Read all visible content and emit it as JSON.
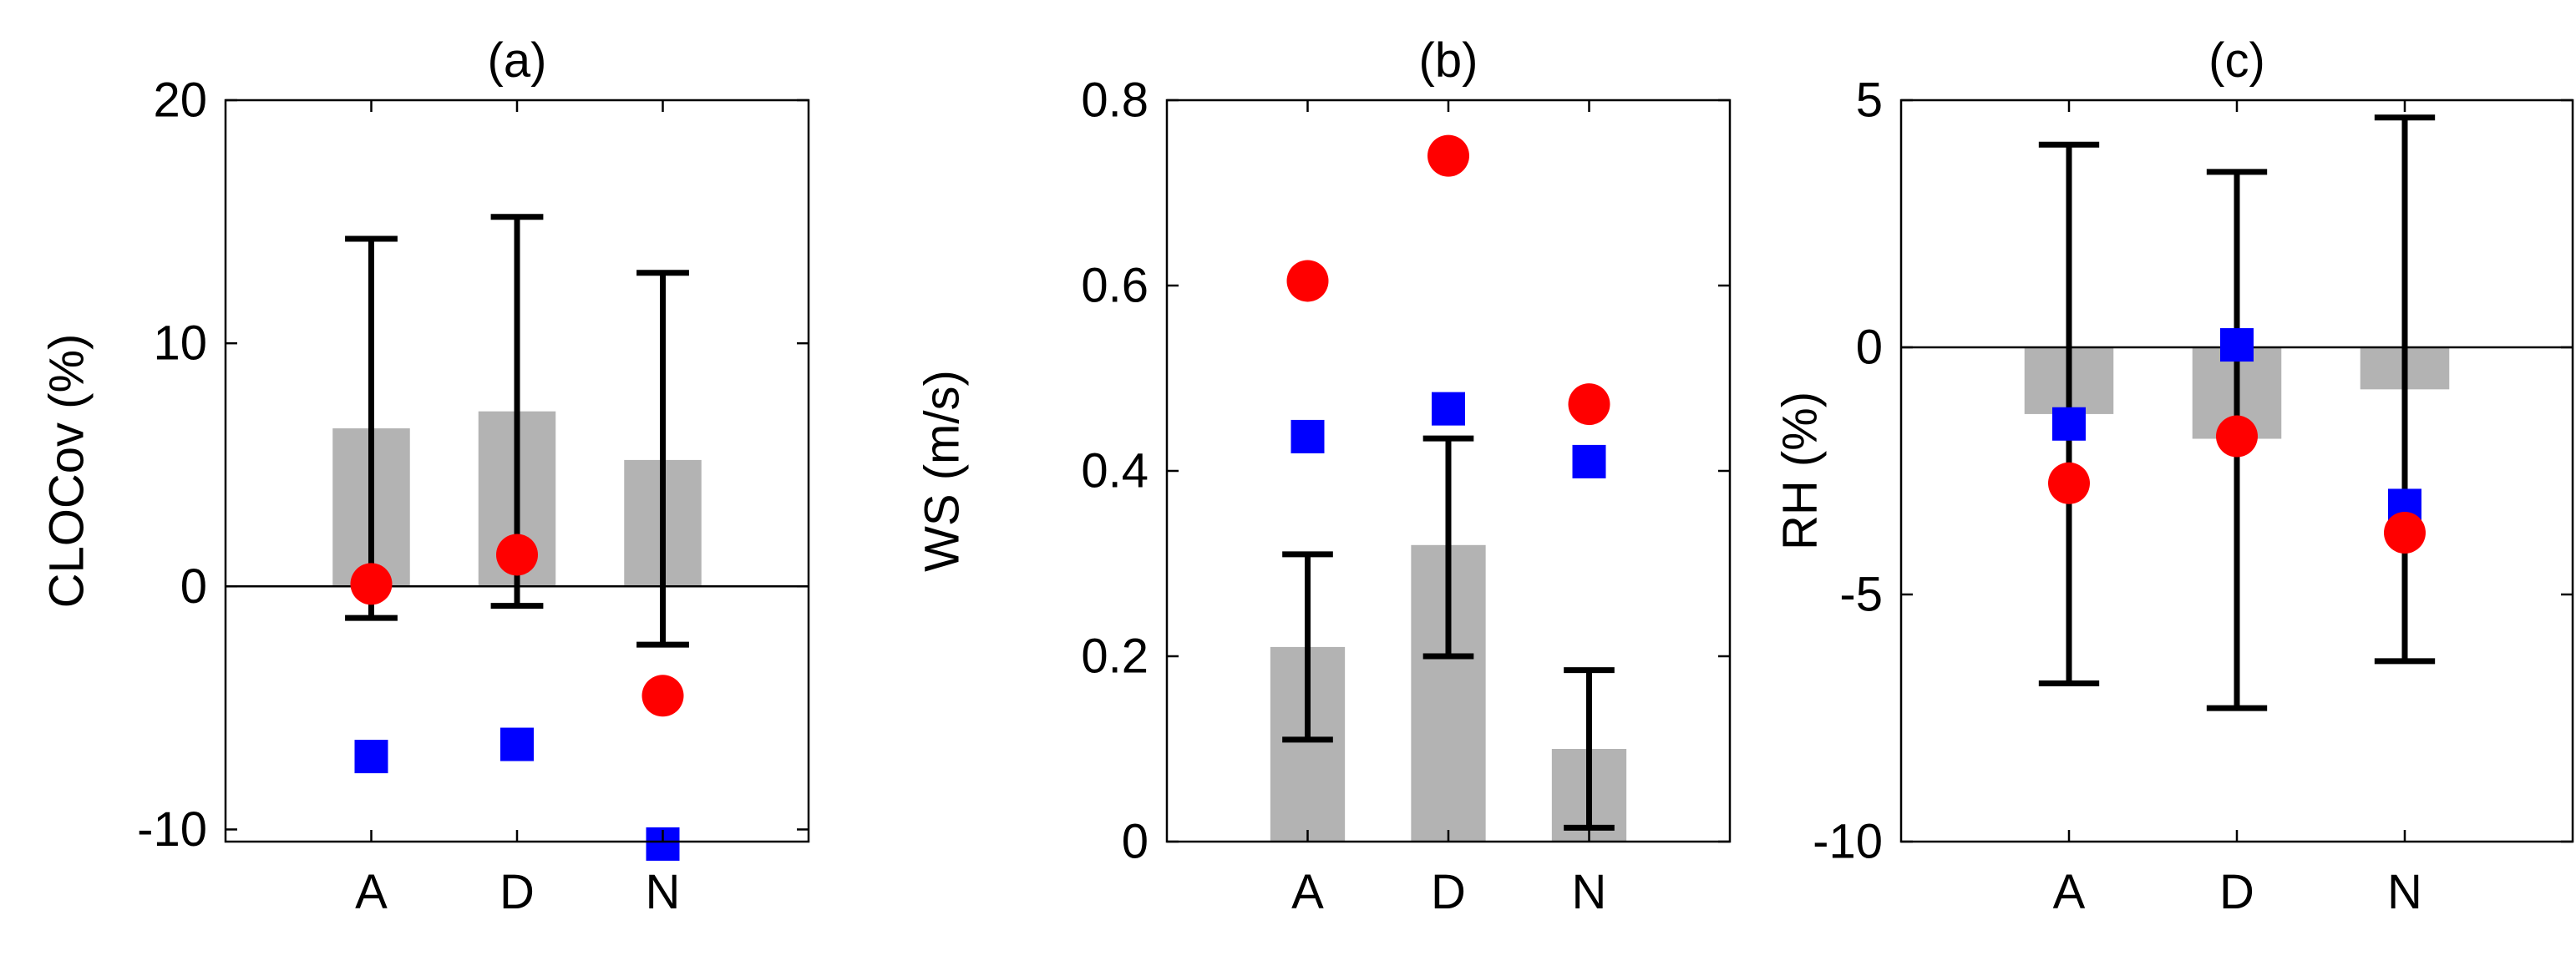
{
  "colors": {
    "bar": "#b3b3b3",
    "errorbar": "#000000",
    "circle": "#ff0000",
    "square": "#0000ff",
    "axis": "#000000"
  },
  "chart_data": [
    {
      "type": "bar",
      "title": "(a)",
      "ylabel": "CLOCov (%)",
      "categories": [
        "A",
        "D",
        "N"
      ],
      "ylim": [
        -10.5,
        20
      ],
      "yticks": [
        20,
        10,
        0,
        -10
      ],
      "ytick_labels": [
        "20",
        "10",
        "0",
        "-10"
      ],
      "bars": [
        6.5,
        7.2,
        5.2
      ],
      "error_low": [
        -1.3,
        -0.8,
        -2.4
      ],
      "error_high": [
        14.3,
        15.2,
        12.9
      ],
      "circles": [
        0.1,
        1.3,
        -4.5
      ],
      "squares": [
        -7.0,
        -6.5,
        -10.6
      ],
      "zero_line": true
    },
    {
      "type": "bar",
      "title": "(b)",
      "ylabel": "WS (m/s)",
      "categories": [
        "A",
        "D",
        "N"
      ],
      "ylim": [
        0,
        0.8
      ],
      "yticks": [
        0.8,
        0.6,
        0.4,
        0.2,
        0
      ],
      "ytick_labels": [
        "0.8",
        "0.6",
        "0.4",
        "0.2",
        "0"
      ],
      "bars": [
        0.21,
        0.32,
        0.1
      ],
      "error_low": [
        0.11,
        0.2,
        0.015
      ],
      "error_high": [
        0.31,
        0.435,
        0.185
      ],
      "circles": [
        0.605,
        0.74,
        0.472
      ],
      "squares": [
        0.437,
        0.467,
        0.41
      ],
      "zero_line": false
    },
    {
      "type": "bar",
      "title": "(c)",
      "ylabel": "RH (%)",
      "categories": [
        "A",
        "D",
        "N"
      ],
      "ylim": [
        -10,
        5
      ],
      "yticks": [
        5,
        0,
        -5,
        -10
      ],
      "ytick_labels": [
        "5",
        "0",
        "-5",
        "-10"
      ],
      "bars": [
        -1.35,
        -1.85,
        -0.85
      ],
      "error_low": [
        -6.8,
        -7.3,
        -6.35
      ],
      "error_high": [
        4.1,
        3.55,
        4.65
      ],
      "circles": [
        -2.75,
        -1.8,
        -3.75
      ],
      "squares": [
        -1.55,
        0.05,
        -3.2
      ],
      "zero_line": true
    }
  ]
}
